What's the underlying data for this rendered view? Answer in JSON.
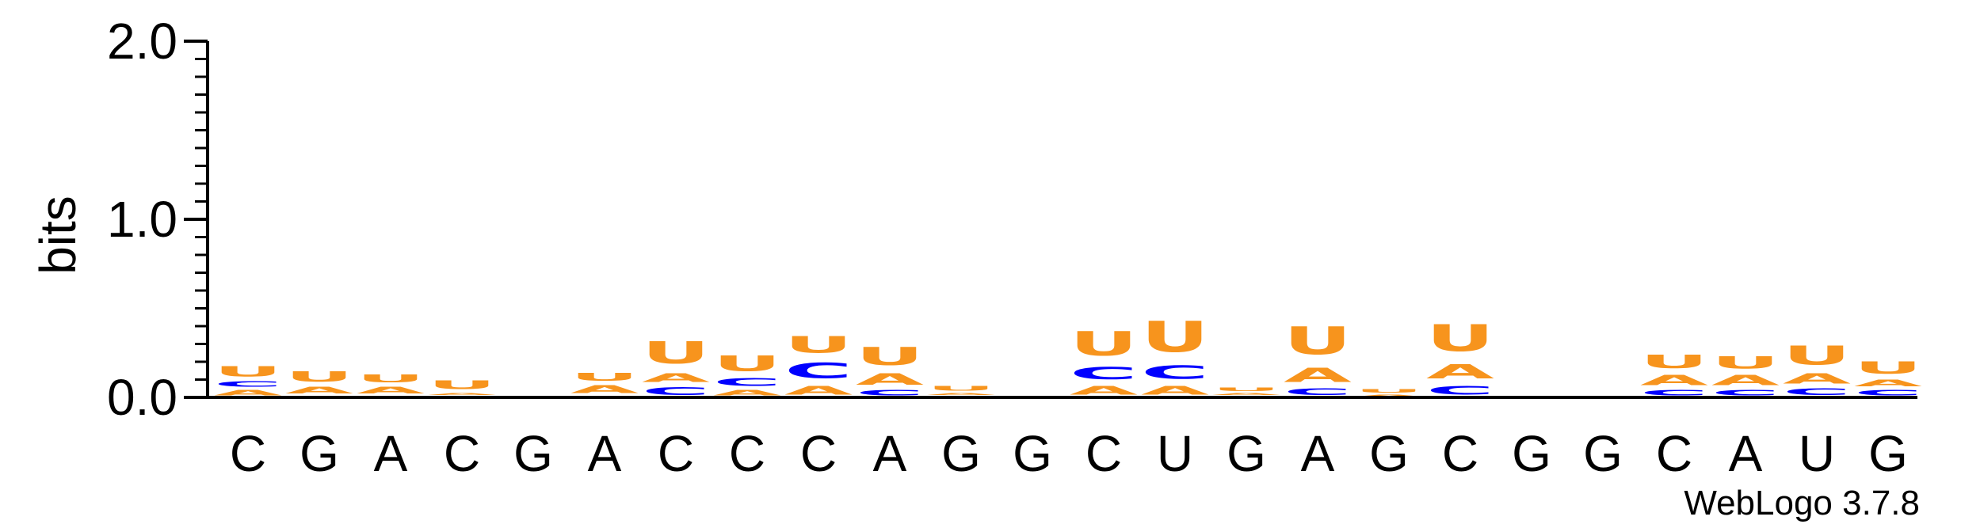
{
  "chart_data": {
    "type": "sequence-logo",
    "ylabel": "bits",
    "ylim": [
      0,
      2.0
    ],
    "yticks": [
      "0.0",
      "1.0",
      "2.0"
    ],
    "credit": "WebLogo 3.7.8",
    "colors": {
      "A": "#f7941d",
      "U": "#f7941d",
      "C": "#0000ff",
      "G": "#ff8c00"
    },
    "positions": [
      {
        "label": "C",
        "stack": [
          {
            "letter": "A",
            "bits": 0.05,
            "color": "#f7941d"
          },
          {
            "letter": "C",
            "bits": 0.05,
            "color": "#0000ff"
          },
          {
            "letter": "U",
            "bits": 0.09,
            "color": "#f7941d"
          }
        ]
      },
      {
        "label": "G",
        "stack": [
          {
            "letter": "C",
            "bits": 0.01,
            "color": "#0000ff"
          },
          {
            "letter": "A",
            "bits": 0.06,
            "color": "#f7941d"
          },
          {
            "letter": "U",
            "bits": 0.09,
            "color": "#f7941d"
          }
        ]
      },
      {
        "label": "A",
        "stack": [
          {
            "letter": "C",
            "bits": 0.01,
            "color": "#0000ff"
          },
          {
            "letter": "A",
            "bits": 0.06,
            "color": "#f7941d"
          },
          {
            "letter": "U",
            "bits": 0.07,
            "color": "#f7941d"
          }
        ]
      },
      {
        "label": "C",
        "stack": [
          {
            "letter": "C",
            "bits": 0.01,
            "color": "#0000ff"
          },
          {
            "letter": "A",
            "bits": 0.02,
            "color": "#f7941d"
          },
          {
            "letter": "U",
            "bits": 0.08,
            "color": "#f7941d"
          }
        ]
      },
      {
        "label": "G",
        "stack": [
          {
            "letter": "U",
            "bits": 0.01,
            "color": "#f7941d"
          }
        ]
      },
      {
        "label": "A",
        "stack": [
          {
            "letter": "C",
            "bits": 0.01,
            "color": "#0000ff"
          },
          {
            "letter": "A",
            "bits": 0.07,
            "color": "#f7941d"
          },
          {
            "letter": "U",
            "bits": 0.07,
            "color": "#f7941d"
          }
        ]
      },
      {
        "label": "C",
        "stack": [
          {
            "letter": "C",
            "bits": 0.07,
            "color": "#0000ff"
          },
          {
            "letter": "A",
            "bits": 0.08,
            "color": "#f7941d"
          },
          {
            "letter": "U",
            "bits": 0.2,
            "color": "#f7941d"
          }
        ]
      },
      {
        "label": "C",
        "stack": [
          {
            "letter": "A",
            "bits": 0.05,
            "color": "#f7941d"
          },
          {
            "letter": "C",
            "bits": 0.07,
            "color": "#0000ff"
          },
          {
            "letter": "U",
            "bits": 0.14,
            "color": "#f7941d"
          }
        ]
      },
      {
        "label": "C",
        "stack": [
          {
            "letter": "A",
            "bits": 0.08,
            "color": "#f7941d"
          },
          {
            "letter": "C",
            "bits": 0.14,
            "color": "#0000ff"
          },
          {
            "letter": "U",
            "bits": 0.15,
            "color": "#f7941d"
          }
        ]
      },
      {
        "label": "A",
        "stack": [
          {
            "letter": "C",
            "bits": 0.05,
            "color": "#0000ff"
          },
          {
            "letter": "A",
            "bits": 0.1,
            "color": "#f7941d"
          },
          {
            "letter": "U",
            "bits": 0.16,
            "color": "#f7941d"
          }
        ]
      },
      {
        "label": "G",
        "stack": [
          {
            "letter": "C",
            "bits": 0.01,
            "color": "#0000ff"
          },
          {
            "letter": "A",
            "bits": 0.02,
            "color": "#f7941d"
          },
          {
            "letter": "U",
            "bits": 0.04,
            "color": "#f7941d"
          }
        ]
      },
      {
        "label": "G",
        "stack": []
      },
      {
        "label": "C",
        "stack": [
          {
            "letter": "A",
            "bits": 0.08,
            "color": "#f7941d"
          },
          {
            "letter": "C",
            "bits": 0.11,
            "color": "#0000ff"
          },
          {
            "letter": "U",
            "bits": 0.22,
            "color": "#f7941d"
          }
        ]
      },
      {
        "label": "U",
        "stack": [
          {
            "letter": "A",
            "bits": 0.08,
            "color": "#f7941d"
          },
          {
            "letter": "C",
            "bits": 0.12,
            "color": "#0000ff"
          },
          {
            "letter": "U",
            "bits": 0.28,
            "color": "#f7941d"
          }
        ]
      },
      {
        "label": "G",
        "stack": [
          {
            "letter": "C",
            "bits": 0.01,
            "color": "#0000ff"
          },
          {
            "letter": "A",
            "bits": 0.02,
            "color": "#f7941d"
          },
          {
            "letter": "U",
            "bits": 0.03,
            "color": "#f7941d"
          }
        ]
      },
      {
        "label": "A",
        "stack": [
          {
            "letter": "C",
            "bits": 0.06,
            "color": "#0000ff"
          },
          {
            "letter": "A",
            "bits": 0.13,
            "color": "#f7941d"
          },
          {
            "letter": "U",
            "bits": 0.25,
            "color": "#f7941d"
          }
        ]
      },
      {
        "label": "G",
        "stack": [
          {
            "letter": "A",
            "bits": 0.02,
            "color": "#f7941d"
          },
          {
            "letter": "U",
            "bits": 0.03,
            "color": "#f7941d"
          }
        ]
      },
      {
        "label": "C",
        "stack": [
          {
            "letter": "C",
            "bits": 0.08,
            "color": "#0000ff"
          },
          {
            "letter": "A",
            "bits": 0.13,
            "color": "#f7941d"
          },
          {
            "letter": "U",
            "bits": 0.24,
            "color": "#f7941d"
          }
        ]
      },
      {
        "label": "G",
        "stack": []
      },
      {
        "label": "G",
        "stack": [
          {
            "letter": "U",
            "bits": 0.01,
            "color": "#f7941d"
          }
        ]
      },
      {
        "label": "C",
        "stack": [
          {
            "letter": "C",
            "bits": 0.05,
            "color": "#0000ff"
          },
          {
            "letter": "A",
            "bits": 0.09,
            "color": "#f7941d"
          },
          {
            "letter": "U",
            "bits": 0.12,
            "color": "#f7941d"
          }
        ]
      },
      {
        "label": "A",
        "stack": [
          {
            "letter": "C",
            "bits": 0.05,
            "color": "#0000ff"
          },
          {
            "letter": "A",
            "bits": 0.09,
            "color": "#f7941d"
          },
          {
            "letter": "U",
            "bits": 0.11,
            "color": "#f7941d"
          }
        ]
      },
      {
        "label": "U",
        "stack": [
          {
            "letter": "C",
            "bits": 0.06,
            "color": "#0000ff"
          },
          {
            "letter": "A",
            "bits": 0.09,
            "color": "#f7941d"
          },
          {
            "letter": "U",
            "bits": 0.17,
            "color": "#f7941d"
          }
        ]
      },
      {
        "label": "G",
        "stack": [
          {
            "letter": "C",
            "bits": 0.05,
            "color": "#0000ff"
          },
          {
            "letter": "A",
            "bits": 0.06,
            "color": "#f7941d"
          },
          {
            "letter": "U",
            "bits": 0.11,
            "color": "#f7941d"
          }
        ]
      }
    ]
  }
}
